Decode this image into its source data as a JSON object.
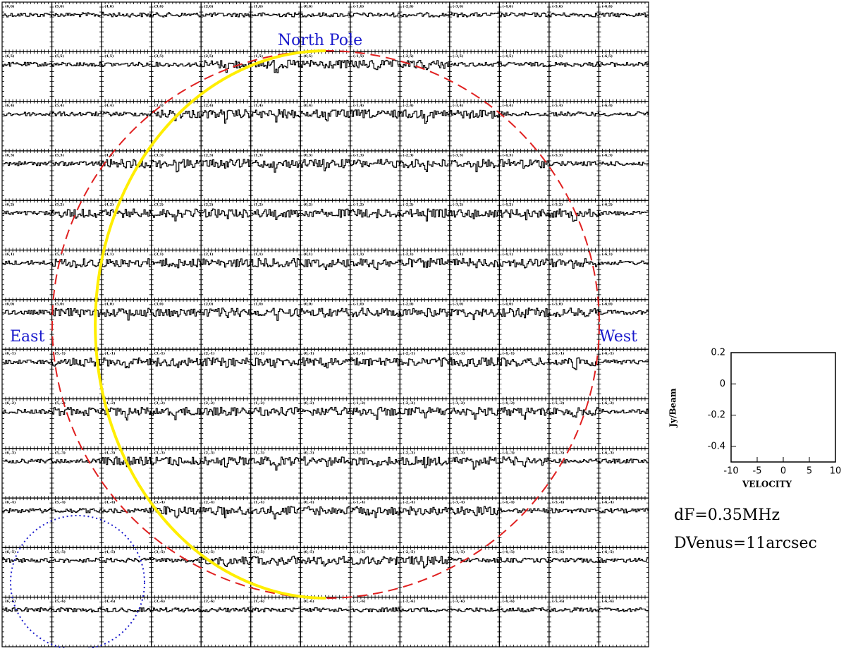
{
  "chart_data": {
    "type": "spectra-grid",
    "panel_labels": [
      [
        "(6,6)",
        "(5,6)",
        "(4,6)",
        "(3,6)",
        "(2,6)",
        "(1,6)",
        "(0,6)",
        "(-1,6)",
        "(-2,6)",
        "(-3,6)",
        "(-4,6)",
        "(-5,6)",
        "(-6,6)"
      ],
      [
        "(6,5)",
        "(5,5)",
        "(4,5)",
        "(3,5)",
        "(2,5)",
        "(1,5)",
        "(0,5)",
        "(-1,5)",
        "(-2,5)",
        "(-3,5)",
        "(-4,5)",
        "(-5,5)",
        "(-6,5)"
      ],
      [
        "(6,4)",
        "(5,4)",
        "(4,4)",
        "(3,4)",
        "(2,4)",
        "(1,4)",
        "(0,4)",
        "(-1,4)",
        "(-2,4)",
        "(-3,4)",
        "(-4,4)",
        "(-5,4)",
        "(-6,4)"
      ],
      [
        "(6,3)",
        "(5,3)",
        "(4,3)",
        "(3,3)",
        "(2,3)",
        "(1,3)",
        "(0,3)",
        "(-1,3)",
        "(-2,3)",
        "(-3,3)",
        "(-4,3)",
        "(-5,3)",
        "(-6,3)"
      ],
      [
        "(6,2)",
        "(5,2)",
        "(4,2)",
        "(3,2)",
        "(2,2)",
        "(1,2)",
        "(0,2)",
        "(-1,2)",
        "(-2,2)",
        "(-3,2)",
        "(-4,2)",
        "(-5,2)",
        "(-6,2)"
      ],
      [
        "(6,1)",
        "(5,1)",
        "(4,1)",
        "(3,1)",
        "(2,1)",
        "(1,1)",
        "(0,1)",
        "(-1,1)",
        "(-2,1)",
        "(-3,1)",
        "(-4,1)",
        "(-5,1)",
        "(-6,1)"
      ],
      [
        "(6,0)",
        "(5,0)",
        "(4,0)",
        "(3,0)",
        "(2,0)",
        "(1,0)",
        "(0,0)",
        "(-1,0)",
        "(-2,0)",
        "(-3,0)",
        "(-4,0)",
        "(-5,0)",
        "(-6,0)"
      ],
      [
        "(6,-1)",
        "(5,-1)",
        "(4,-1)",
        "(3,-1)",
        "(2,-1)",
        "(1,-1)",
        "(0,-1)",
        "(-1,-1)",
        "(-2,-1)",
        "(-3,-1)",
        "(-4,-1)",
        "(-5,-1)",
        "(-6,-1)"
      ],
      [
        "(6,-2)",
        "(5,-2)",
        "(4,-2)",
        "(3,-2)",
        "(2,-2)",
        "(1,-2)",
        "(0,-2)",
        "(-1,-2)",
        "(-2,-2)",
        "(-3,-2)",
        "(-4,-2)",
        "(-5,-2)",
        "(-6,-2)"
      ],
      [
        "(6,-3)",
        "(5,-3)",
        "(4,-3)",
        "(3,-3)",
        "(2,-3)",
        "(1,-3)",
        "(0,-3)",
        "(-1,-3)",
        "(-2,-3)",
        "(-3,-3)",
        "(-4,-3)",
        "(-5,-3)",
        "(-6,-3)"
      ],
      [
        "(6,-4)",
        "(5,-4)",
        "(4,-4)",
        "(3,-4)",
        "(2,-4)",
        "(1,-4)",
        "(0,-4)",
        "(-1,-4)",
        "(-2,-4)",
        "(-3,-4)",
        "(-4,-4)",
        "(-5,-4)",
        "(-6,-4)"
      ],
      [
        "(6,-5)",
        "(5,-5)",
        "(4,-5)",
        "(3,-5)",
        "(2,-5)",
        "(1,-5)",
        "(0,-5)",
        "(-1,-5)",
        "(-2,-5)",
        "(-3,-5)",
        "(-4,-5)",
        "(-5,-5)",
        "(-6,-5)"
      ],
      [
        "(6,-6)",
        "(5,-6)",
        "(4,-6)",
        "(3,-6)",
        "(2,-6)",
        "(1,-6)",
        "(0,-6)",
        "(-1,-6)",
        "(-2,-6)",
        "(-3,-6)",
        "(-4,-6)",
        "(-5,-6)",
        "(-6,-6)"
      ]
    ],
    "annotations": {
      "north": "North Pole",
      "east": "East",
      "west": "West"
    },
    "key": {
      "xlabel": "VELOCITY",
      "ylabel": "Jy/Beam",
      "xlim": [
        -10,
        10
      ],
      "ylim": [
        -0.5,
        0.2
      ],
      "xticks": [
        -10,
        -5,
        0,
        5,
        10
      ],
      "yticks": [
        0.2,
        0,
        -0.2,
        -0.4
      ]
    },
    "notes": [
      "dF=0.35MHz",
      "DVenus=11arcsec"
    ]
  }
}
